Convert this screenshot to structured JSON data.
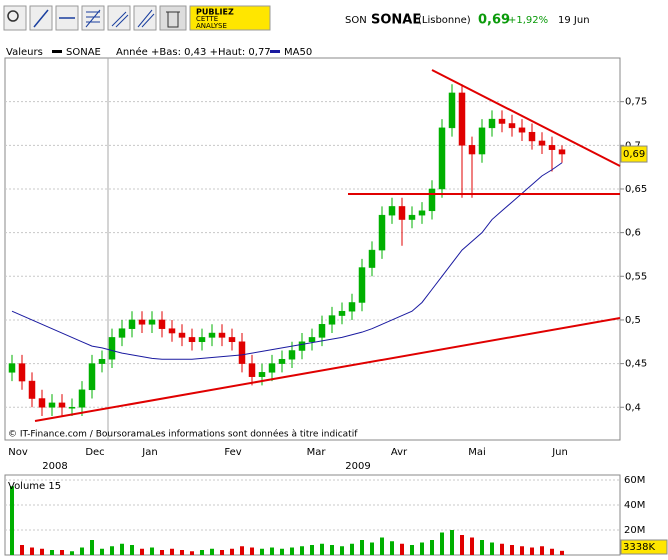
{
  "chart_data": {
    "type": "candlestick",
    "header": {
      "code": "SON",
      "name": "SONAE",
      "market": "(Lisbonne)",
      "price": "0,69",
      "change": "+1,92%",
      "date": "19 Jun"
    },
    "toolbar_ad": [
      "PUBLIEZ",
      "CETTE",
      "ANALYSE"
    ],
    "legend": {
      "label": "Valeurs",
      "series": "SONAE",
      "year_range": "Année +Bas: 0,43 +Haut: 0,77",
      "ma": "MA50"
    },
    "months": [
      "Nov",
      "Dec",
      "Jan",
      "Fev",
      "Mar",
      "Avr",
      "Mai",
      "Jun"
    ],
    "years": [
      "2008",
      "2009"
    ],
    "footer": "© IT-Finance.com / BoursoramaLes informations sont données à titre indicatif",
    "up_color": "#00b000",
    "down_color": "#e00000",
    "open": [
      0.44,
      0.45,
      0.43,
      0.41,
      0.4,
      0.405,
      0.4,
      0.4,
      0.42,
      0.45,
      0.455,
      0.48,
      0.49,
      0.5,
      0.495,
      0.5,
      0.49,
      0.485,
      0.48,
      0.475,
      0.48,
      0.485,
      0.48,
      0.475,
      0.45,
      0.435,
      0.44,
      0.45,
      0.455,
      0.465,
      0.475,
      0.48,
      0.495,
      0.505,
      0.51,
      0.52,
      0.56,
      0.58,
      0.62,
      0.63,
      0.615,
      0.62,
      0.625,
      0.65,
      0.72,
      0.76,
      0.7,
      0.69,
      0.72,
      0.73,
      0.725,
      0.72,
      0.715,
      0.705,
      0.7,
      0.695
    ],
    "high": [
      0.46,
      0.46,
      0.44,
      0.42,
      0.415,
      0.415,
      0.41,
      0.43,
      0.46,
      0.465,
      0.49,
      0.5,
      0.51,
      0.51,
      0.51,
      0.51,
      0.5,
      0.495,
      0.49,
      0.49,
      0.495,
      0.495,
      0.49,
      0.485,
      0.46,
      0.45,
      0.46,
      0.465,
      0.475,
      0.485,
      0.49,
      0.505,
      0.515,
      0.52,
      0.53,
      0.57,
      0.59,
      0.63,
      0.64,
      0.64,
      0.63,
      0.635,
      0.66,
      0.73,
      0.77,
      0.77,
      0.71,
      0.73,
      0.74,
      0.74,
      0.735,
      0.73,
      0.725,
      0.715,
      0.71,
      0.7
    ],
    "low": [
      0.43,
      0.42,
      0.4,
      0.39,
      0.39,
      0.39,
      0.39,
      0.39,
      0.41,
      0.44,
      0.445,
      0.47,
      0.48,
      0.485,
      0.485,
      0.48,
      0.475,
      0.47,
      0.465,
      0.465,
      0.47,
      0.47,
      0.465,
      0.44,
      0.425,
      0.425,
      0.43,
      0.44,
      0.445,
      0.455,
      0.465,
      0.47,
      0.485,
      0.495,
      0.5,
      0.51,
      0.55,
      0.57,
      0.61,
      0.585,
      0.605,
      0.61,
      0.615,
      0.64,
      0.71,
      0.64,
      0.64,
      0.68,
      0.71,
      0.715,
      0.71,
      0.705,
      0.695,
      0.69,
      0.67,
      0.68
    ],
    "close": [
      0.45,
      0.43,
      0.41,
      0.4,
      0.405,
      0.4,
      0.4,
      0.42,
      0.45,
      0.455,
      0.48,
      0.49,
      0.5,
      0.495,
      0.5,
      0.49,
      0.485,
      0.48,
      0.475,
      0.48,
      0.485,
      0.48,
      0.475,
      0.45,
      0.435,
      0.44,
      0.45,
      0.455,
      0.465,
      0.475,
      0.48,
      0.495,
      0.505,
      0.51,
      0.52,
      0.56,
      0.58,
      0.62,
      0.63,
      0.615,
      0.62,
      0.625,
      0.65,
      0.72,
      0.76,
      0.7,
      0.69,
      0.72,
      0.73,
      0.725,
      0.72,
      0.715,
      0.705,
      0.7,
      0.695,
      0.69
    ],
    "ma50": {
      "name": "MA50",
      "color": "#1a1aa0",
      "values": [
        0.51,
        0.505,
        0.5,
        0.495,
        0.49,
        0.485,
        0.48,
        0.475,
        0.47,
        0.468,
        0.465,
        0.462,
        0.46,
        0.458,
        0.456,
        0.455,
        0.455,
        0.455,
        0.455,
        0.456,
        0.457,
        0.458,
        0.459,
        0.46,
        0.462,
        0.464,
        0.466,
        0.468,
        0.47,
        0.472,
        0.474,
        0.476,
        0.478,
        0.48,
        0.483,
        0.486,
        0.49,
        0.495,
        0.5,
        0.505,
        0.51,
        0.52,
        0.535,
        0.55,
        0.565,
        0.58,
        0.59,
        0.6,
        0.615,
        0.625,
        0.635,
        0.645,
        0.655,
        0.665,
        0.672,
        0.68
      ]
    },
    "last_price": {
      "value": 0.69,
      "label": "0,69"
    },
    "ylim": [
      0.3625,
      0.8
    ],
    "yticks": [
      {
        "value": 0.4,
        "label": "0,4"
      },
      {
        "value": 0.45,
        "label": "0,45"
      },
      {
        "value": 0.5,
        "label": "0,5"
      },
      {
        "value": 0.55,
        "label": "0,55"
      },
      {
        "value": 0.6,
        "label": "0,6"
      },
      {
        "value": 0.65,
        "label": "0,65"
      },
      {
        "value": 0.7,
        "label": "0,7"
      },
      {
        "value": 0.75,
        "label": "0,75"
      }
    ],
    "grid": true,
    "volume": {
      "title": "Volume 15",
      "values": [
        55,
        8,
        6,
        5,
        4,
        4,
        3,
        6,
        12,
        5,
        7,
        9,
        8,
        5,
        6,
        4,
        5,
        4,
        3,
        4,
        5,
        4,
        5,
        7,
        6,
        5,
        6,
        5,
        6,
        7,
        8,
        9,
        8,
        7,
        9,
        12,
        10,
        14,
        11,
        9,
        8,
        10,
        12,
        18,
        20,
        16,
        14,
        12,
        10,
        9,
        8,
        7,
        6,
        7,
        5,
        3.338
      ],
      "last": {
        "value": 3.338,
        "label": "3338K"
      },
      "ylim": [
        0,
        64
      ],
      "yticks": [
        {
          "value": 20,
          "label": "20M"
        },
        {
          "value": 40,
          "label": "40M"
        },
        {
          "value": 60,
          "label": "60M"
        }
      ]
    }
  }
}
